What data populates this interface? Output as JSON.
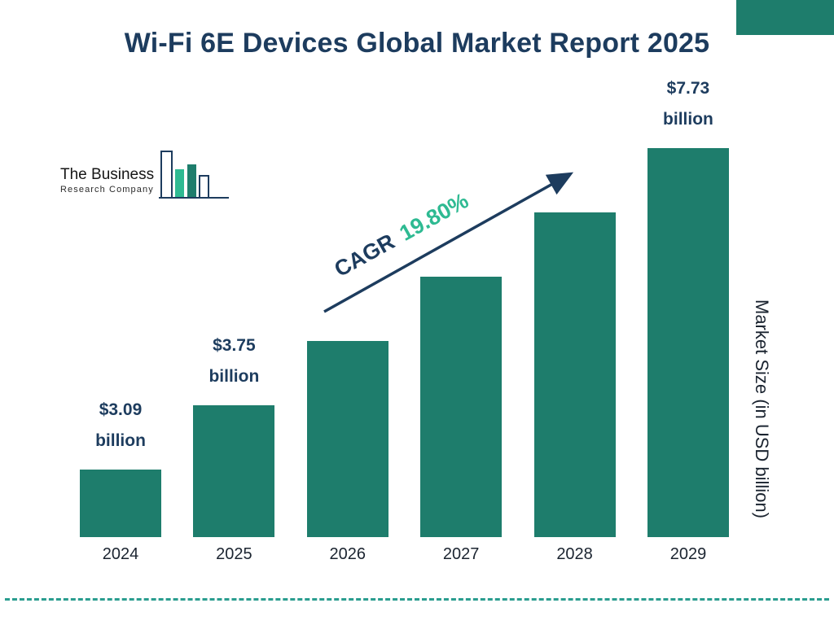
{
  "page": {
    "title": "Wi-Fi 6E Devices Global Market Report 2025"
  },
  "logo": {
    "line1": "The Business",
    "line2": "Research Company"
  },
  "cagr": {
    "label": "CAGR",
    "value": "19.80%"
  },
  "y_axis_label": "Market Size (in USD billion)",
  "colors": {
    "bar": "#1e7d6c",
    "navy": "#1d3c5e",
    "green_accent": "#2eba92",
    "dashed_line": "#2a9d8f"
  },
  "chart_data": {
    "type": "bar",
    "title": "Wi-Fi 6E Devices Global Market Report 2025",
    "categories": [
      "2024",
      "2025",
      "2026",
      "2027",
      "2028",
      "2029"
    ],
    "values": [
      3.09,
      3.75,
      4.49,
      5.38,
      6.45,
      7.73
    ],
    "value_labels": [
      [
        "$3.09",
        "billion"
      ],
      [
        "$3.75",
        "billion"
      ],
      null,
      null,
      null,
      [
        "$7.73",
        "billion"
      ]
    ],
    "cagr": "19.80%",
    "xlabel": "",
    "ylabel": "Market Size (in USD billion)",
    "legend": "none",
    "grid": "off",
    "bar_color": "#1e7d6c"
  }
}
